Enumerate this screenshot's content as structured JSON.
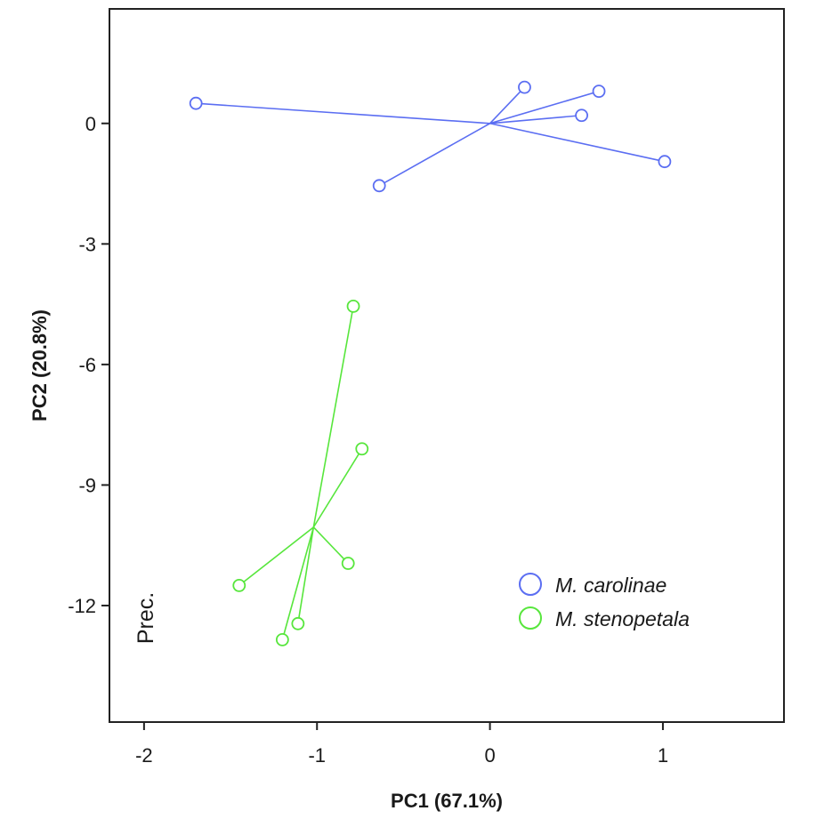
{
  "chart_data": {
    "type": "scatter",
    "xlabel": "PC1 (67.1%)",
    "ylabel": "PC2 (20.8%)",
    "xlim": [
      -2.2,
      1.7
    ],
    "ylim": [
      -14.9,
      2.85
    ],
    "xticks": [
      -2,
      -1,
      0,
      1
    ],
    "yticks": [
      0,
      -3,
      -6,
      -9,
      -12
    ],
    "xtick_labels": [
      "-2",
      "-1",
      "0",
      "1"
    ],
    "ytick_labels": [
      "0",
      "-3",
      "-6",
      "-9",
      "-12"
    ],
    "grid": false,
    "legend_position": "bottom-right",
    "annotation": "Prec.",
    "series": [
      {
        "name": "M. carolinae",
        "color": "#5b6ef2",
        "centroid": [
          0.0,
          0.0
        ],
        "points": [
          [
            -1.7,
            0.5
          ],
          [
            0.2,
            0.9
          ],
          [
            0.63,
            0.8
          ],
          [
            0.53,
            0.2
          ],
          [
            1.01,
            -0.95
          ],
          [
            -0.64,
            -1.55
          ]
        ]
      },
      {
        "name": "M. stenopetala",
        "color": "#57e63c",
        "centroid": [
          -1.02,
          -10.05
        ],
        "points": [
          [
            -0.79,
            -4.55
          ],
          [
            -0.74,
            -8.1
          ],
          [
            -0.82,
            -10.95
          ],
          [
            -1.45,
            -11.5
          ],
          [
            -1.11,
            -12.45
          ],
          [
            -1.2,
            -12.85
          ]
        ]
      }
    ]
  }
}
